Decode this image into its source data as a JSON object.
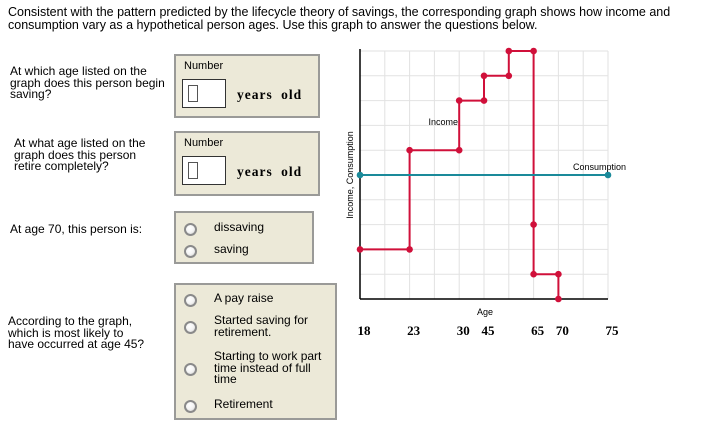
{
  "intro": "Consistent with the pattern predicted by the lifecycle theory of savings, the corresponding graph shows how income and consumption vary as a hypothetical person ages. Use this graph to answer the questions below.",
  "questions": [
    {
      "text": "At which age listed on the graph does this person begin saving?",
      "input_label": "Number",
      "value": "",
      "unit": "years old"
    },
    {
      "text": "At what age listed on the graph does this person retire completely?",
      "input_label": "Number",
      "value": "",
      "unit": "years old"
    },
    {
      "text": "At age 70, this person is:",
      "options": [
        "dissaving",
        "saving"
      ]
    },
    {
      "text": "According to the graph, which is most likely to have occurred at age 45?",
      "options": [
        "A pay raise",
        "Started saving for retirement.",
        "Starting to work part time instead of full time",
        "Retirement"
      ]
    }
  ],
  "chart_data": {
    "type": "line",
    "xlabel": "Age",
    "ylabel": "Income, Consumption",
    "x_ticks": [
      {
        "pos": 0,
        "label": "18"
      },
      {
        "pos": 2,
        "label": "23"
      },
      {
        "pos": 4,
        "label": "30"
      },
      {
        "pos": 5,
        "label": "45"
      },
      {
        "pos": 7,
        "label": "65"
      },
      {
        "pos": 8,
        "label": "70"
      },
      {
        "pos": 10,
        "label": "75"
      }
    ],
    "xlim": [
      0,
      10
    ],
    "ylim": [
      0,
      10
    ],
    "grid": true,
    "series": [
      {
        "name": "Income",
        "color": "#d0103a",
        "points": [
          [
            0,
            2
          ],
          [
            2,
            2
          ],
          [
            2,
            6
          ],
          [
            4,
            6
          ],
          [
            4,
            8
          ],
          [
            5,
            8
          ],
          [
            5,
            9
          ],
          [
            6,
            9
          ],
          [
            6,
            10
          ],
          [
            7,
            10
          ],
          [
            7,
            3
          ],
          [
            7,
            1
          ],
          [
            8,
            1
          ],
          [
            8,
            0
          ]
        ]
      },
      {
        "name": "Consumption",
        "color": "#1a8a9a",
        "points": [
          [
            0,
            5
          ],
          [
            10,
            5
          ]
        ]
      }
    ]
  }
}
